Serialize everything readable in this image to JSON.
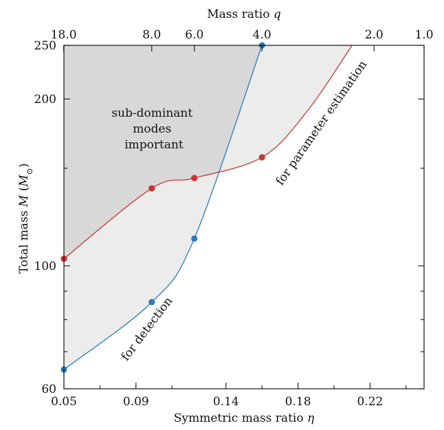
{
  "chart_data": {
    "type": "line",
    "xlabel_text": "Symmetric mass ratio ",
    "xlabel_symbol": "η",
    "ylabel_text": "Total mass ",
    "ylabel_symbol": "M",
    "ylabel_paren_open": " (",
    "ylabel_unit": "M",
    "ylabel_unit_sub": "⊙",
    "ylabel_paren_close": ")",
    "top_xlabel_text": "Mass ratio ",
    "top_xlabel_symbol": "q",
    "xlim": [
      0.05,
      0.25
    ],
    "ylim": [
      60,
      250
    ],
    "yscale": "log",
    "x_ticks": [
      0.05,
      0.09,
      0.14,
      0.18,
      0.22
    ],
    "x_tick_labels": [
      "0.05",
      "0.09",
      "0.14",
      "0.18",
      "0.22"
    ],
    "x_minor_ticks": [
      0.07,
      0.11,
      0.16,
      0.2,
      0.24
    ],
    "y_ticks": [
      60,
      100,
      200,
      250
    ],
    "y_tick_labels": [
      "60",
      "100",
      "200",
      "250"
    ],
    "y_minor_ticks": [
      70,
      80,
      90,
      150
    ],
    "top_ticks_q": [
      18.0,
      8.0,
      6.0,
      4.0,
      2.0,
      1.0
    ],
    "top_tick_labels": [
      "18.0",
      "8.0",
      "6.0",
      "4.0",
      "2.0",
      "1.0"
    ],
    "series": [
      {
        "color": "#cc3333",
        "x": [
          0.05,
          0.0988,
          0.1224,
          0.16
        ],
        "y": [
          103,
          138,
          144,
          157
        ],
        "curve_extension": [
          [
            0.185,
            190
          ],
          [
            0.21,
            250
          ]
        ]
      },
      {
        "color": "#2b7bb9",
        "x": [
          0.05,
          0.0988,
          0.1224,
          0.16
        ],
        "y": [
          65,
          86,
          112,
          250
        ]
      }
    ],
    "regions": [
      {
        "color": "#d8d8d8"
      },
      {
        "color": "#ececec"
      }
    ],
    "annotations": [
      {
        "lines": [
          "sub-dominant",
          "modes",
          "important"
        ]
      },
      {
        "text": "for detection"
      },
      {
        "text": "for parameter estimation"
      }
    ]
  }
}
